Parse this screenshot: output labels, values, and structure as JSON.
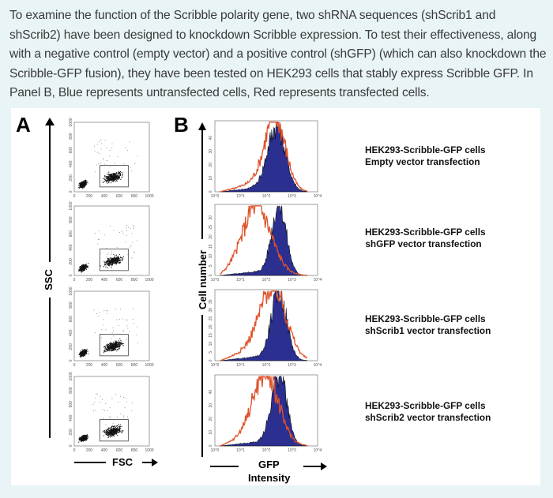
{
  "intro_text": "To examine the function of the Scribble polarity gene, two shRNA sequences (shScrib1 and shScrib2) have been designed to knockdown Scribble expression. To test their effectiveness, along with a negative control (empty vector) and a positive control (shGFP) (which can also knockdown the Scribble-GFP fusion), they have been tested on HEK293 cells that stably express Scribble GFP. In Panel B, Blue represents untransfected cells, Red represents transfected cells.",
  "figure": {
    "panel_a_label": "A",
    "panel_b_label": "B",
    "panel_a_y_axis": "SSC",
    "panel_a_x_axis": "FSC",
    "panel_b_y_axis": "Cell number",
    "panel_b_x_axis_line1": "GFP",
    "panel_b_x_axis_line2": "Intensity",
    "colors": {
      "untransfected": "#2b2f8f",
      "transfected": "#e0522a"
    },
    "conditions": [
      {
        "line1": "HEK293-Scribble-GFP cells",
        "line2": "Empty vector transfection"
      },
      {
        "line1": "HEK293-Scribble-GFP cells",
        "line2": "shGFP vector transfection"
      },
      {
        "line1": "HEK293-Scribble-GFP cells",
        "line2": "shScrib1 vector transfection"
      },
      {
        "line1": "HEK293-Scribble-GFP cells",
        "line2": "shScrib2 vector transfection"
      }
    ]
  },
  "chart_data": [
    {
      "type": "scatter",
      "title": "Empty vector",
      "xlabel": "FSC",
      "ylabel": "SSC",
      "xlim": [
        0,
        1000
      ],
      "ylim": [
        0,
        1000
      ],
      "xticks": [
        "0",
        "200",
        "400",
        "600",
        "800",
        "1000"
      ],
      "yticks": [
        "0",
        "200",
        "400",
        "600",
        "800",
        "1000"
      ],
      "gate": {
        "x": [
          340,
          720
        ],
        "y": [
          70,
          380
        ]
      }
    },
    {
      "type": "scatter",
      "title": "shGFP",
      "xlabel": "FSC",
      "ylabel": "SSC",
      "xlim": [
        0,
        1000
      ],
      "ylim": [
        0,
        1000
      ],
      "xticks": [
        "0",
        "200",
        "400",
        "600",
        "800",
        "1000"
      ],
      "yticks": [
        "0",
        "200",
        "400",
        "600",
        "800",
        "1000"
      ],
      "gate": {
        "x": [
          340,
          720
        ],
        "y": [
          70,
          380
        ]
      }
    },
    {
      "type": "scatter",
      "title": "shScrib1",
      "xlabel": "FSC",
      "ylabel": "SSC",
      "xlim": [
        0,
        1000
      ],
      "ylim": [
        0,
        1000
      ],
      "xticks": [
        "0",
        "200",
        "400",
        "600",
        "800",
        "1000"
      ],
      "yticks": [
        "0",
        "200",
        "400",
        "600",
        "800",
        "1000"
      ],
      "gate": {
        "x": [
          340,
          720
        ],
        "y": [
          70,
          380
        ]
      }
    },
    {
      "type": "scatter",
      "title": "shScrib2",
      "xlabel": "FSC",
      "ylabel": "SSC",
      "xlim": [
        0,
        1000
      ],
      "ylim": [
        0,
        1000
      ],
      "xticks": [
        "0",
        "200",
        "400",
        "600",
        "800",
        "1000"
      ],
      "yticks": [
        "0",
        "200",
        "400",
        "600",
        "800",
        "1000"
      ],
      "gate": {
        "x": [
          340,
          720
        ],
        "y": [
          70,
          380
        ]
      }
    },
    {
      "type": "area",
      "title": "Empty vector",
      "xlabel": "GFP Intensity",
      "ylabel": "Cell number",
      "xscale": "log",
      "xlim": [
        1,
        10000
      ],
      "xticks": [
        "10^0",
        "10^1",
        "10^2",
        "10^3",
        "10^4"
      ],
      "ylim": [
        0,
        50
      ],
      "yticks": [
        "0",
        "10",
        "20",
        "30",
        "40"
      ],
      "series": [
        {
          "name": "Untransfected",
          "peak_log10": 2.4,
          "spread": 0.35,
          "height": 0.9,
          "tail": 0.05
        },
        {
          "name": "Transfected",
          "peak_log10": 2.35,
          "spread": 0.4,
          "height": 1.0,
          "tail": 0.12
        }
      ]
    },
    {
      "type": "area",
      "title": "shGFP",
      "xlabel": "GFP Intensity",
      "ylabel": "Cell number",
      "xscale": "log",
      "xlim": [
        1,
        10000
      ],
      "xticks": [
        "10^0",
        "10^1",
        "10^2",
        "10^3",
        "10^4"
      ],
      "ylim": [
        0,
        30
      ],
      "yticks": [
        "0",
        "5",
        "10",
        "15",
        "20",
        "25",
        "30"
      ],
      "series": [
        {
          "name": "Untransfected",
          "peak_log10": 2.5,
          "spread": 0.28,
          "height": 1.0,
          "tail": 0.05
        },
        {
          "name": "Transfected",
          "peak_log10": 1.7,
          "spread": 0.55,
          "height": 0.78,
          "tail": 0.28
        }
      ]
    },
    {
      "type": "area",
      "title": "shScrib1",
      "xlabel": "GFP Intensity",
      "ylabel": "Cell number",
      "xscale": "log",
      "xlim": [
        1,
        10000
      ],
      "xticks": [
        "10^0",
        "10^1",
        "10^2",
        "10^3",
        "10^4"
      ],
      "ylim": [
        0,
        35
      ],
      "yticks": [
        "0",
        "5",
        "10",
        "15",
        "20",
        "25",
        "30",
        "35"
      ],
      "series": [
        {
          "name": "Untransfected",
          "peak_log10": 2.5,
          "spread": 0.3,
          "height": 0.95,
          "tail": 0.05
        },
        {
          "name": "Transfected",
          "peak_log10": 2.3,
          "spread": 0.5,
          "height": 0.95,
          "tail": 0.18
        }
      ]
    },
    {
      "type": "area",
      "title": "shScrib2",
      "xlabel": "GFP Intensity",
      "ylabel": "Cell number",
      "xscale": "log",
      "xlim": [
        1,
        10000
      ],
      "xticks": [
        "10^0",
        "10^1",
        "10^2",
        "10^3",
        "10^4"
      ],
      "ylim": [
        0,
        50
      ],
      "yticks": [
        "0",
        "10",
        "20",
        "30",
        "40"
      ],
      "series": [
        {
          "name": "Untransfected",
          "peak_log10": 2.5,
          "spread": 0.3,
          "height": 1.0,
          "tail": 0.05
        },
        {
          "name": "Transfected",
          "peak_log10": 2.0,
          "spread": 0.5,
          "height": 0.92,
          "tail": 0.15
        }
      ]
    }
  ]
}
